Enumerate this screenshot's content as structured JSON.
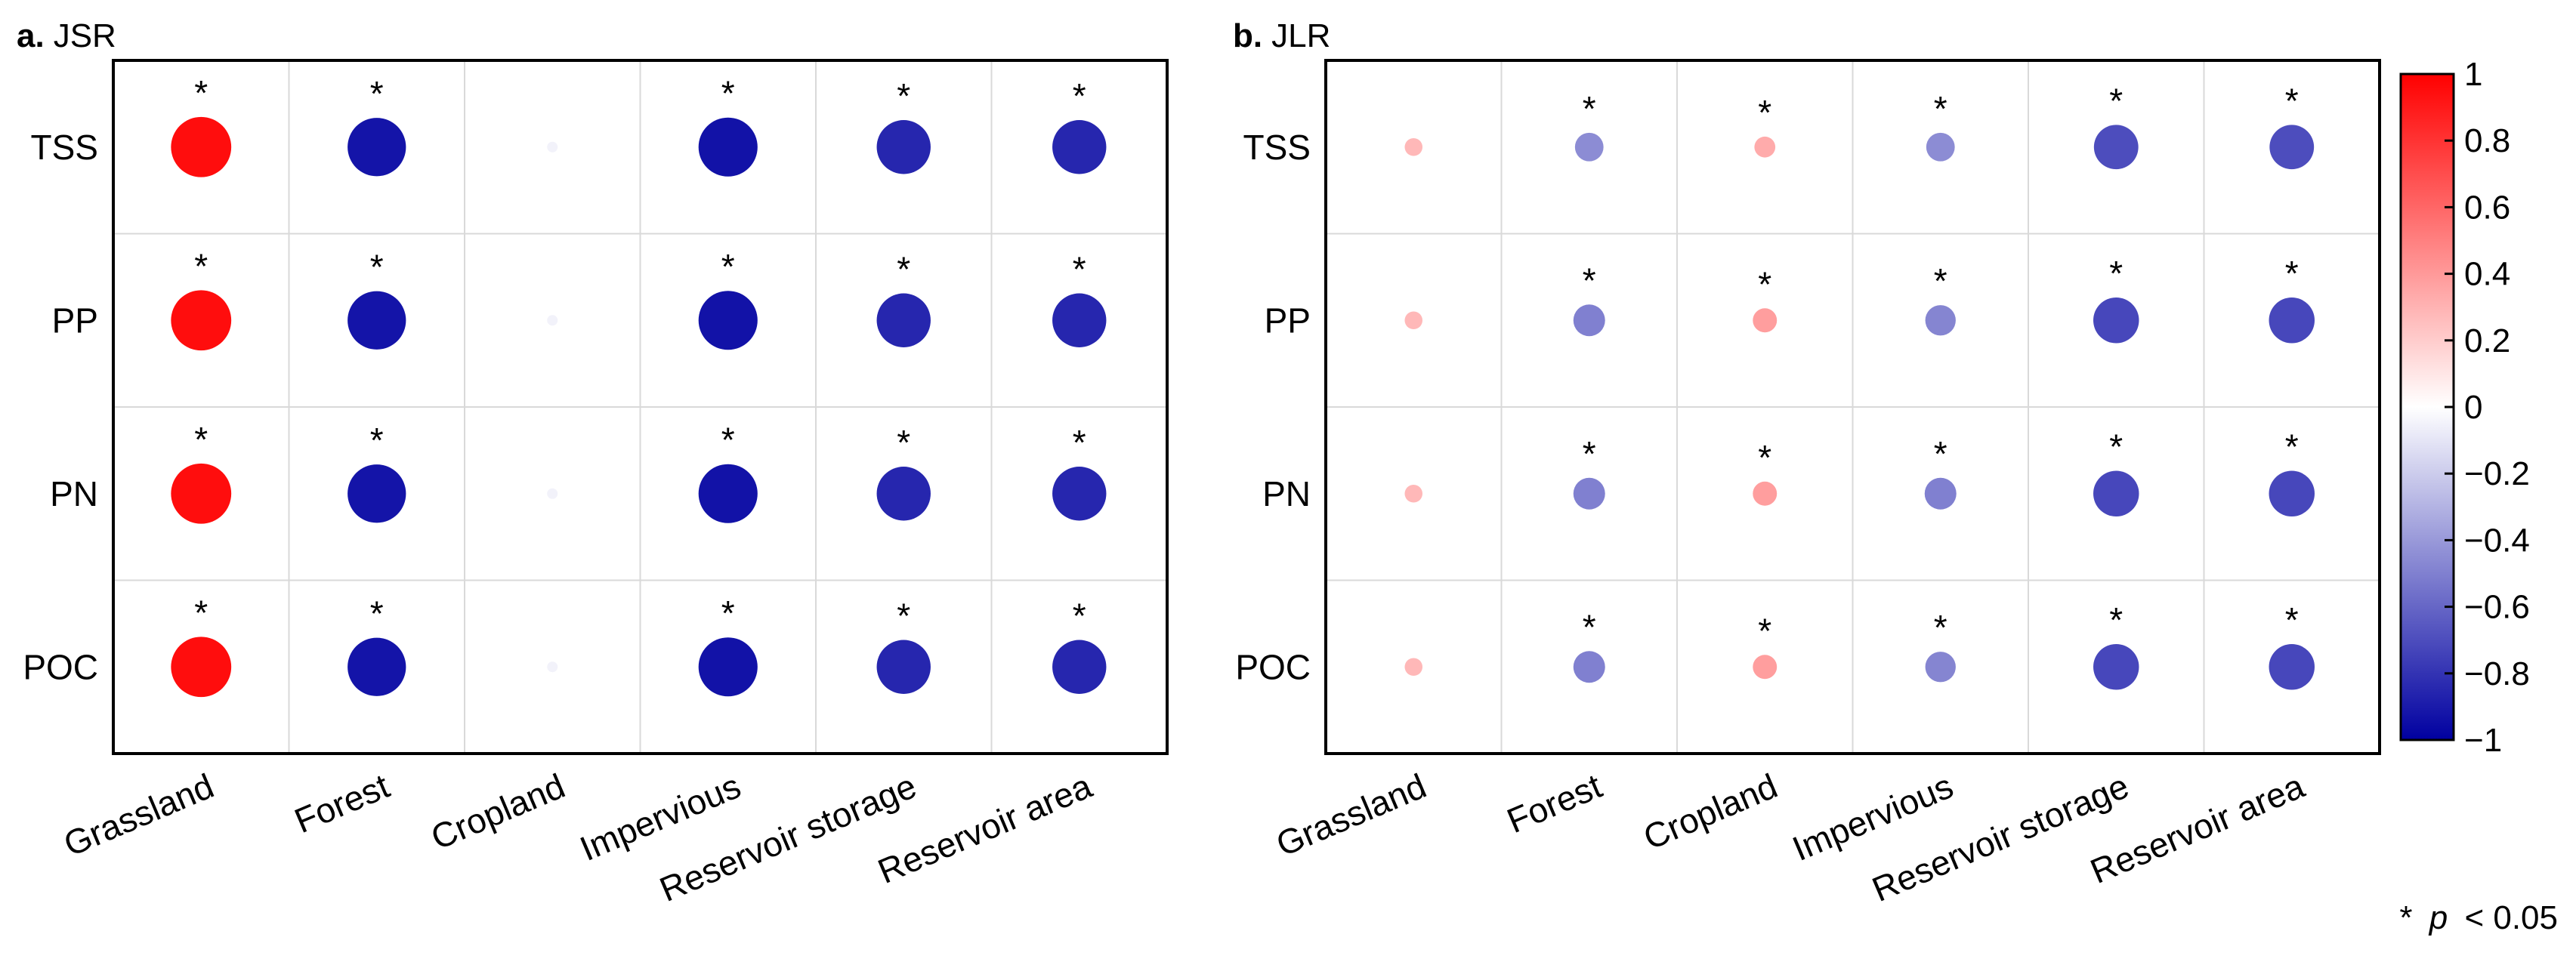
{
  "chart_data": {
    "type": "correlation-bubble",
    "panels": [
      {
        "label_bold": "a.",
        "label": "JSR",
        "rows": [
          "TSS",
          "PP",
          "PN",
          "POC"
        ],
        "columns": [
          "Grassland",
          "Forest",
          "Cropland",
          "Impervious",
          "Reservoir storage",
          "Reservoir area"
        ],
        "values": [
          [
            0.95,
            -0.92,
            -0.05,
            -0.93,
            -0.85,
            -0.85
          ],
          [
            0.95,
            -0.92,
            -0.05,
            -0.93,
            -0.85,
            -0.85
          ],
          [
            0.95,
            -0.92,
            -0.05,
            -0.93,
            -0.85,
            -0.85
          ],
          [
            0.95,
            -0.92,
            -0.05,
            -0.93,
            -0.85,
            -0.85
          ]
        ],
        "significant": [
          [
            true,
            true,
            false,
            true,
            true,
            true
          ],
          [
            true,
            true,
            false,
            true,
            true,
            true
          ],
          [
            true,
            true,
            false,
            true,
            true,
            true
          ],
          [
            true,
            true,
            false,
            true,
            true,
            true
          ]
        ]
      },
      {
        "label_bold": "b.",
        "label": "JLR",
        "rows": [
          "TSS",
          "PP",
          "PN",
          "POC"
        ],
        "columns": [
          "Grassland",
          "Forest",
          "Cropland",
          "Impervious",
          "Reservoir storage",
          "Reservoir area"
        ],
        "values": [
          [
            0.28,
            -0.45,
            0.33,
            -0.45,
            -0.7,
            -0.7
          ],
          [
            0.28,
            -0.5,
            0.38,
            -0.48,
            -0.72,
            -0.72
          ],
          [
            0.28,
            -0.5,
            0.38,
            -0.5,
            -0.72,
            -0.72
          ],
          [
            0.28,
            -0.5,
            0.38,
            -0.48,
            -0.72,
            -0.72
          ]
        ],
        "significant": [
          [
            false,
            true,
            true,
            true,
            true,
            true
          ],
          [
            false,
            true,
            true,
            true,
            true,
            true
          ],
          [
            false,
            true,
            true,
            true,
            true,
            true
          ],
          [
            false,
            true,
            true,
            true,
            true,
            true
          ]
        ]
      }
    ],
    "colorbar": {
      "min": -1,
      "max": 1,
      "ticks": [
        1,
        0.8,
        0.6,
        0.4,
        0.2,
        0,
        -0.2,
        -0.4,
        -0.6,
        -0.8,
        -1
      ],
      "tick_labels": [
        "1",
        "0.8",
        "0.6",
        "0.4",
        "0.2",
        "0",
        "−0.2",
        "−0.4",
        "−0.6",
        "−0.8",
        "−1"
      ],
      "colors": {
        "negative": "#0000a0",
        "zero": "#ffffff",
        "positive": "#ff0000"
      }
    },
    "significance_marker": "*",
    "note": {
      "marker": "*",
      "symbol": "p",
      "text": "< 0.05"
    }
  }
}
